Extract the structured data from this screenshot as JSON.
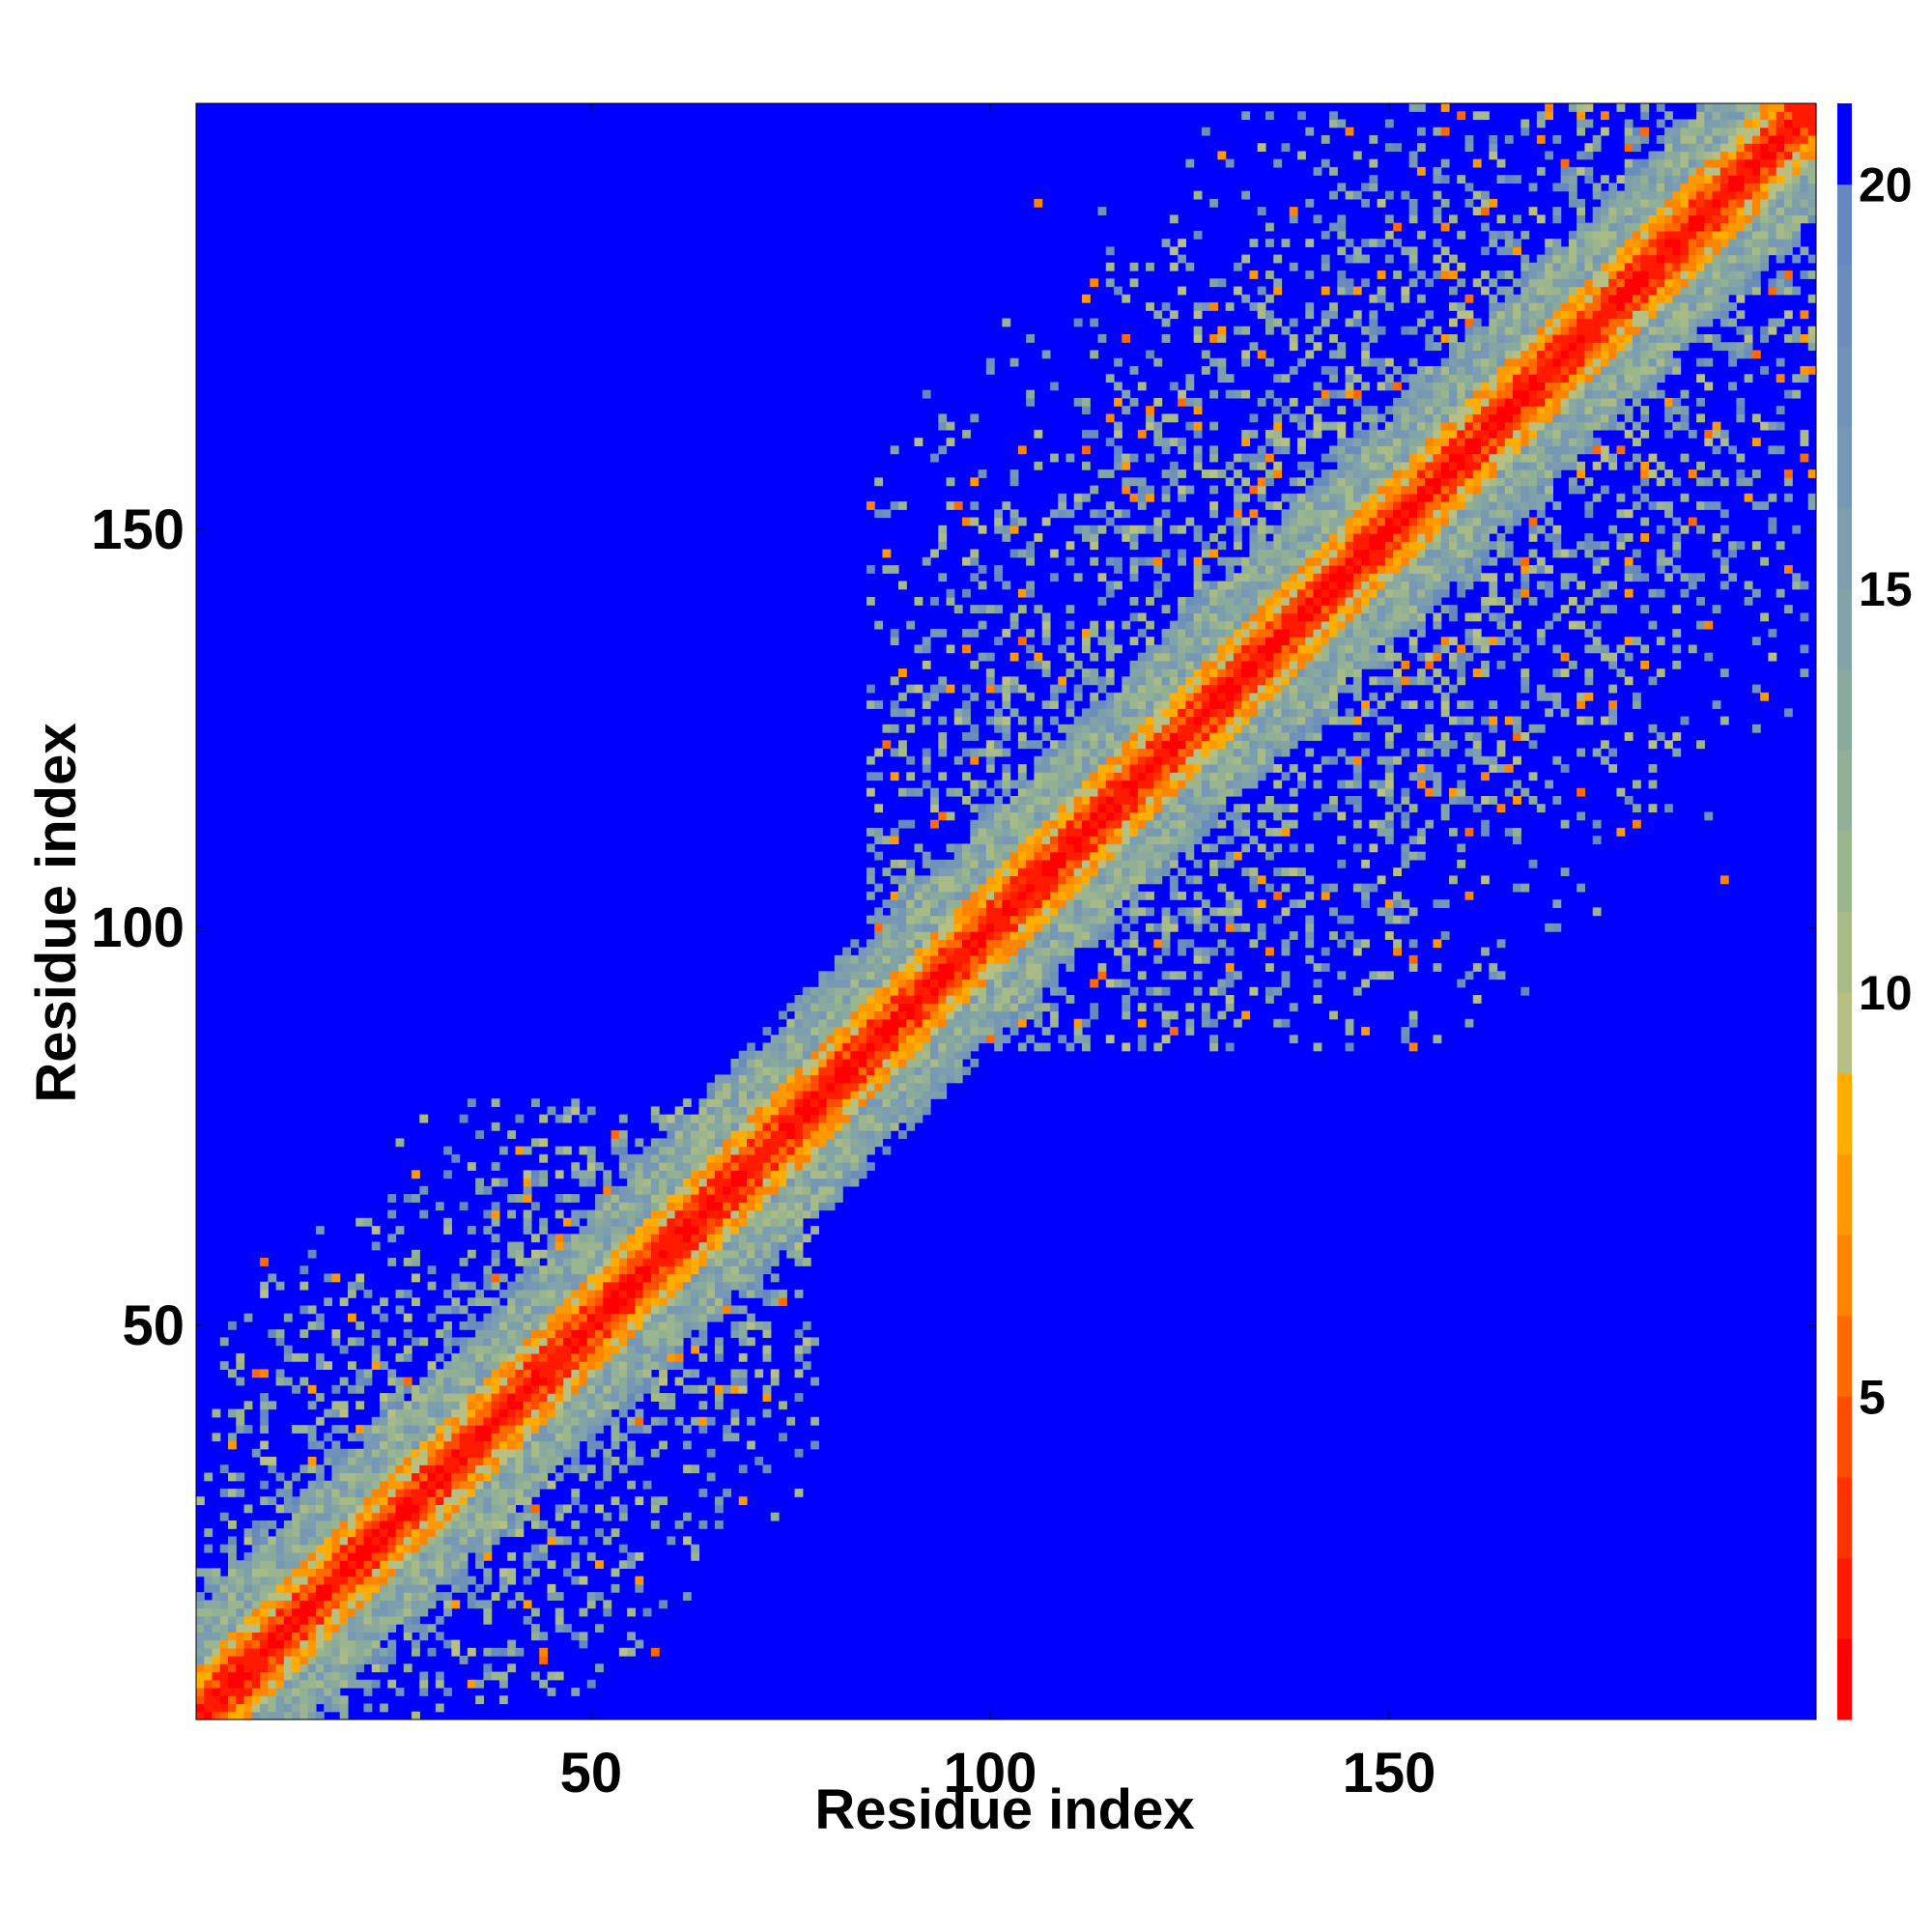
{
  "chart_data": {
    "type": "heatmap",
    "title": "",
    "xlabel": "Residue index",
    "ylabel": "Residue index",
    "n_residues": 203,
    "xlim": [
      1,
      203
    ],
    "ylim": [
      1,
      203
    ],
    "x_ticks": [
      50,
      100,
      150
    ],
    "y_ticks": [
      50,
      100,
      150
    ],
    "colorbar": {
      "ticks": [
        5,
        10,
        15,
        20
      ],
      "range": [
        1,
        21
      ],
      "levels": [
        1,
        2,
        3,
        4,
        5,
        6,
        7,
        8,
        9,
        10,
        11,
        12,
        13,
        14,
        15,
        16,
        17,
        18,
        19,
        20,
        21
      ],
      "colors": [
        "#ff0000",
        "#ff1a00",
        "#ff3300",
        "#ff4d00",
        "#ff6a00",
        "#ff8400",
        "#ff9900",
        "#ffad00",
        "#b7bf82",
        "#a8bb86",
        "#9bb58e",
        "#92b096",
        "#8aaa9e",
        "#83a4a6",
        "#7c9eae",
        "#7698b4",
        "#6f92b9",
        "#6a8dbc",
        "#6588be",
        "#0000ff"
      ]
    },
    "background_value": 21,
    "background_color": "#0000ff",
    "diagonal_band": {
      "core_max": 3,
      "mid_max": 6,
      "halo_max": 13,
      "halo_irregular_max": 15
    },
    "contact_regions": [
      {
        "x": [
          1,
          78
        ],
        "y": [
          1,
          78
        ],
        "density": 0.55
      },
      {
        "x": [
          85,
          203
        ],
        "y": [
          85,
          203
        ],
        "density": 0.5
      }
    ],
    "notable_points": [
      {
        "x": 106,
        "y": 191,
        "value": 6
      },
      {
        "x": 192,
        "y": 106,
        "value": 6
      }
    ]
  }
}
